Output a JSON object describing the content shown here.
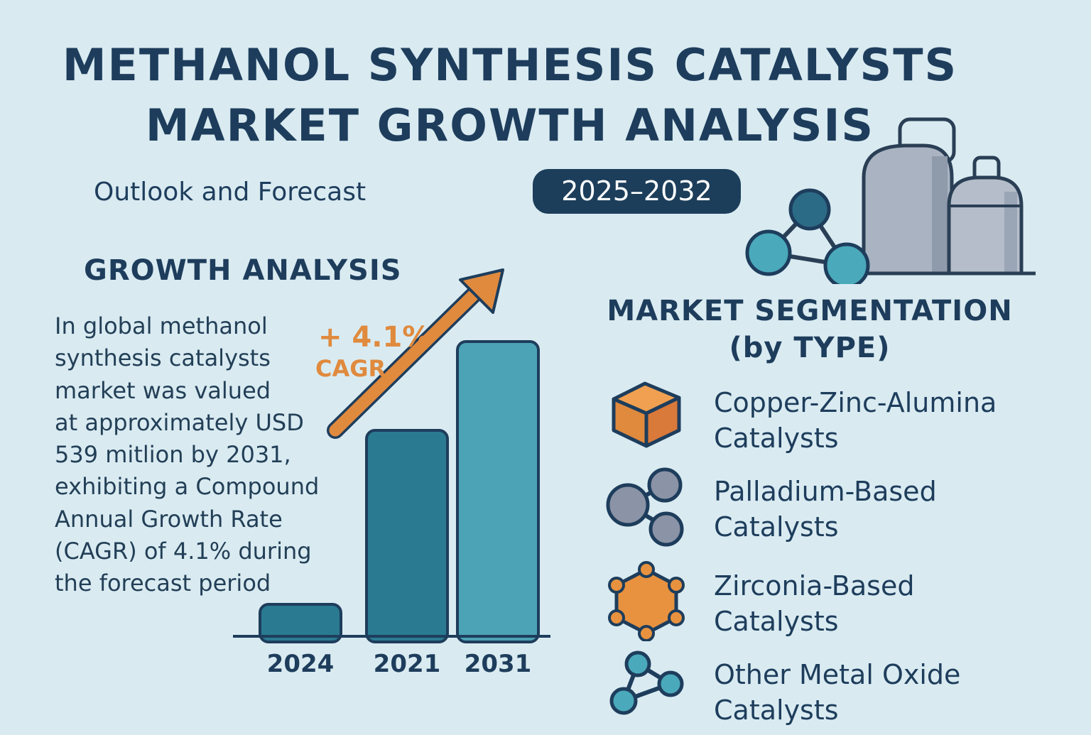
{
  "title": {
    "line1": "METHANOL SYNTHESIS CATALYSTS",
    "line2": "MARKET GROWTH ANALYSIS"
  },
  "subtitle": "Outlook and Forecast",
  "period_badge": "2025–2032",
  "growth": {
    "heading": "GROWTH ANALYSIS",
    "paragraph_lines": [
      "In global methanol",
      "synthesis catalysts",
      "market was valued",
      "at approximately USD",
      "539 mitlion by 2031,",
      "exhibiting a Compound",
      "Annual Growth Rate",
      "(CAGR) of 4.1% during",
      "the forecast period"
    ],
    "cagr_value": "+ 4.1%",
    "cagr_label": "CAGR"
  },
  "segmentation": {
    "heading_line1": "MARKET SEGMENTATION",
    "heading_line2": "(by TYPE)",
    "items": [
      {
        "line1": "Copper-Zinc-Alumina",
        "line2": "Catalysts",
        "icon": "cube-icon"
      },
      {
        "line1": "Palladium-Based",
        "line2": "Catalysts",
        "icon": "molecule-icon"
      },
      {
        "line1": "Zirconia-Based",
        "line2": "Catalysts",
        "icon": "hexagon-molecule-icon"
      },
      {
        "line1": "Other Metal Oxide",
        "line2": "Catalysts",
        "icon": "triangle-molecule-icon"
      }
    ]
  },
  "colors": {
    "background": "#d9ebf1",
    "navy": "#1e3d5c",
    "orange": "#e08a3e",
    "teal_dark": "#2a7b91",
    "teal_light": "#4ca3b5"
  },
  "chart_data": {
    "type": "bar",
    "categories": [
      "2024",
      "2021",
      "2031"
    ],
    "values": [
      45,
      290,
      415
    ],
    "ylim": [
      0,
      450
    ],
    "grid": false,
    "annotation": "+ 4.1% CAGR"
  }
}
